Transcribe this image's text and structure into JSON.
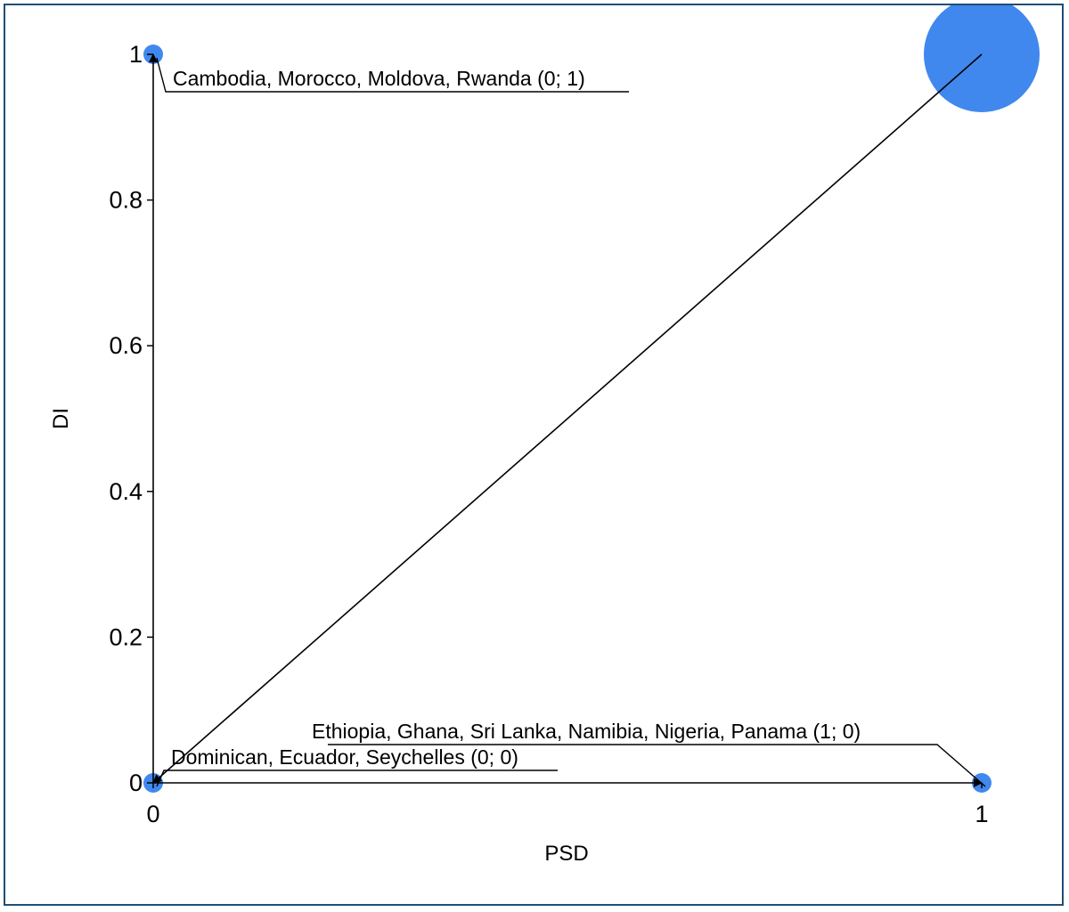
{
  "chart_data": {
    "type": "scatter",
    "xlabel": "PSD",
    "ylabel": "DI",
    "xlim": [
      0,
      1
    ],
    "ylim": [
      0,
      1
    ],
    "x_ticks": [
      "0",
      "1"
    ],
    "y_ticks": [
      "0",
      "0.2",
      "0.4",
      "0.6",
      "0.8",
      "1"
    ],
    "x_tick_values": [
      0,
      1
    ],
    "y_tick_values": [
      0,
      0.2,
      0.4,
      0.6,
      0.8,
      1
    ],
    "grid": false,
    "point_color": "#4088EE",
    "points": [
      {
        "x": 0,
        "y": 1,
        "size": 1,
        "label": "Cambodia, Morocco, Moldova, Rwanda (0; 1)"
      },
      {
        "x": 1,
        "y": 1,
        "size": 7
      },
      {
        "x": 1,
        "y": 0,
        "size": 1,
        "label": "Ethiopia, Ghana, Sri Lanka, Namibia, Nigeria, Panama (1; 0)"
      },
      {
        "x": 0,
        "y": 0,
        "size": 1,
        "label": "Dominican, Ecuador, Seychelles (0; 0)"
      }
    ],
    "arrows": [
      {
        "from": [
          0,
          0
        ],
        "to": [
          0,
          1
        ]
      },
      {
        "from": [
          1,
          1
        ],
        "to": [
          0,
          0
        ]
      },
      {
        "from": [
          0,
          0
        ],
        "to": [
          1,
          0
        ]
      }
    ]
  }
}
